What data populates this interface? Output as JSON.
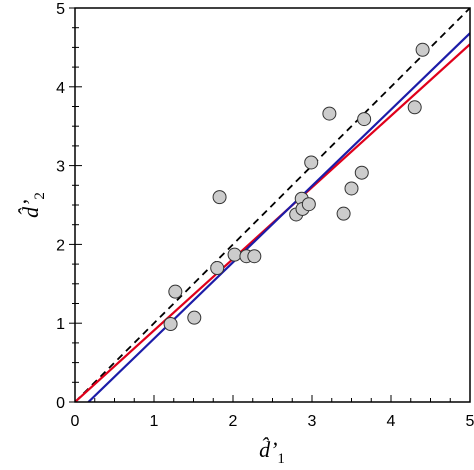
{
  "chart_data": {
    "type": "scatter",
    "title": "",
    "xlabel": {
      "base": "d̂’",
      "sub": "1"
    },
    "ylabel": {
      "base": "d̂’",
      "sub": "2"
    },
    "xlim": [
      0,
      5
    ],
    "ylim": [
      0,
      5
    ],
    "xticks": [
      "0",
      "1",
      "2",
      "3",
      "4",
      "5"
    ],
    "yticks": [
      "0",
      "1",
      "2",
      "3",
      "4",
      "5"
    ],
    "grid": false,
    "legend": "none",
    "points": [
      {
        "x": 1.21,
        "y": 0.99
      },
      {
        "x": 1.27,
        "y": 1.4
      },
      {
        "x": 1.51,
        "y": 1.07
      },
      {
        "x": 1.8,
        "y": 1.7
      },
      {
        "x": 1.83,
        "y": 2.6
      },
      {
        "x": 2.02,
        "y": 1.87
      },
      {
        "x": 2.17,
        "y": 1.85
      },
      {
        "x": 2.27,
        "y": 1.85
      },
      {
        "x": 2.8,
        "y": 2.38
      },
      {
        "x": 2.87,
        "y": 2.58
      },
      {
        "x": 2.88,
        "y": 2.45
      },
      {
        "x": 2.96,
        "y": 2.51
      },
      {
        "x": 2.99,
        "y": 3.04
      },
      {
        "x": 3.22,
        "y": 3.66
      },
      {
        "x": 3.4,
        "y": 2.39
      },
      {
        "x": 3.5,
        "y": 2.71
      },
      {
        "x": 3.63,
        "y": 2.91
      },
      {
        "x": 3.66,
        "y": 3.59
      },
      {
        "x": 4.3,
        "y": 3.74
      },
      {
        "x": 4.4,
        "y": 4.47
      }
    ],
    "lines": [
      {
        "style": "dashed",
        "color": "#000000",
        "x": [
          0,
          5
        ],
        "y": [
          0,
          5
        ]
      },
      {
        "style": "solid",
        "color": "#e0001b",
        "x": [
          0,
          5
        ],
        "y": [
          0,
          4.54
        ]
      },
      {
        "style": "solid",
        "color": "#1c1ca8",
        "x": [
          0.17,
          5
        ],
        "y": [
          0,
          4.68
        ]
      }
    ],
    "marker_fill": "#cccccc",
    "marker_edge": "#333333"
  }
}
